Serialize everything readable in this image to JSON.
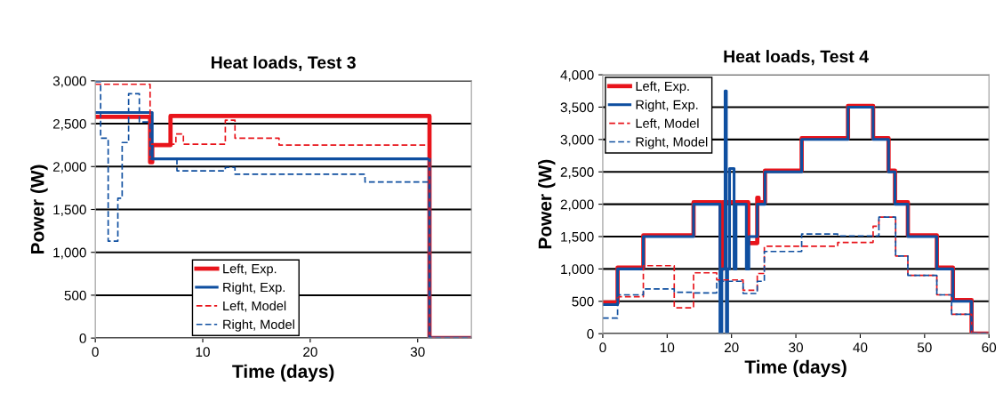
{
  "chart_data": [
    {
      "type": "step",
      "title": "Heat loads, Test 3",
      "xlabel": "Time (days)",
      "ylabel": "Power (W)",
      "xlim": [
        0,
        35
      ],
      "xticks": [
        0,
        10,
        20,
        30
      ],
      "ylim": [
        0,
        3000
      ],
      "yticks": [
        0,
        {
          "value": 500,
          "label": "500"
        },
        {
          "value": 1000,
          "label": "1,000"
        },
        {
          "value": 1500,
          "label": "1,500"
        },
        {
          "value": 2000,
          "label": "2,000"
        },
        {
          "value": 2500,
          "label": "2,500"
        },
        {
          "value": 3000,
          "label": "3,000"
        }
      ],
      "grid": "y",
      "legend": "bottom",
      "series": [
        {
          "name": "Left, Exp.",
          "color": "#e8141b",
          "line_style": "solid",
          "x": [
            0,
            5.1,
            5.3,
            7.0,
            31.1,
            35
          ],
          "values": [
            2580,
            2050,
            2250,
            2590,
            0,
            0
          ]
        },
        {
          "name": "Right, Exp.",
          "color": "#0f4fa0",
          "line_style": "solid",
          "x": [
            0,
            5.3,
            31.1,
            35
          ],
          "values": [
            2630,
            2090,
            0,
            0
          ]
        },
        {
          "name": "Left, Model",
          "color": "#e8141b",
          "line_style": "dashed",
          "x": [
            0,
            5.1,
            7.5,
            8.2,
            12.1,
            13.0,
            17.1,
            31.1,
            35
          ],
          "values": [
            2960,
            2260,
            2380,
            2260,
            2540,
            2330,
            2250,
            0,
            0
          ]
        },
        {
          "name": "Right, Model",
          "color": "#0f4fa0",
          "line_style": "dashed",
          "x": [
            0,
            0.5,
            1.2,
            2.1,
            2.5,
            3.1,
            4.1,
            5.1,
            7.6,
            12.1,
            13.0,
            25.1,
            31.1,
            35
          ],
          "values": [
            2990,
            2330,
            1130,
            1630,
            2280,
            2850,
            2520,
            2090,
            1950,
            1990,
            1910,
            1820,
            0,
            0
          ]
        }
      ]
    },
    {
      "type": "step",
      "title": "Heat loads, Test 4",
      "xlabel": "Time (days)",
      "ylabel": "Power (W)",
      "xlim": [
        0,
        60
      ],
      "xticks": [
        0,
        10,
        20,
        30,
        40,
        50,
        60
      ],
      "ylim": [
        0,
        4000
      ],
      "yticks": [
        0,
        {
          "value": 500,
          "label": "500"
        },
        {
          "value": 1000,
          "label": "1,000"
        },
        {
          "value": 1500,
          "label": "1,500"
        },
        {
          "value": 2000,
          "label": "2,000"
        },
        {
          "value": 2500,
          "label": "2,500"
        },
        {
          "value": 3000,
          "label": "3,000"
        },
        {
          "value": 3500,
          "label": "3,500"
        },
        {
          "value": 4000,
          "label": "4,000"
        }
      ],
      "grid": "y",
      "legend": "top left",
      "series": [
        {
          "name": "Left, Exp.",
          "color": "#e8141b",
          "line_style": "solid",
          "x": [
            0,
            2.3,
            6.3,
            14.1,
            18.3,
            18.6,
            22.6,
            24.0,
            24.2,
            25.2,
            30.9,
            38.1,
            42.0,
            44.4,
            45.4,
            47.4,
            51.9,
            54.4,
            57.3,
            60
          ],
          "values": [
            480,
            1020,
            1520,
            2030,
            1000,
            2030,
            1400,
            2100,
            2030,
            2520,
            3020,
            3520,
            3020,
            2520,
            2030,
            1520,
            1020,
            520,
            0,
            0
          ]
        },
        {
          "name": "Right, Exp.",
          "color": "#0f4fa0",
          "line_style": "solid",
          "x": [
            0,
            2.3,
            6.3,
            14.1,
            18.2,
            18.5,
            19.0,
            19.2,
            19.4,
            19.7,
            20.4,
            20.7,
            22.3,
            22.7,
            24.0,
            25.2,
            30.9,
            38.1,
            42.0,
            44.4,
            45.4,
            47.4,
            51.9,
            54.4,
            57.3,
            60
          ],
          "values": [
            450,
            1000,
            1500,
            2000,
            0,
            1000,
            3750,
            0,
            1000,
            2550,
            1000,
            2000,
            1000,
            1500,
            2000,
            2500,
            3000,
            3500,
            3000,
            2500,
            2000,
            1500,
            1000,
            500,
            0,
            0
          ]
        },
        {
          "name": "Left, Model",
          "color": "#e8141b",
          "line_style": "dashed",
          "x": [
            0,
            2.3,
            6.3,
            11.1,
            14.1,
            17.7,
            21.8,
            24.0,
            25.1,
            36.5,
            42.0,
            42.9,
            45.5,
            47.4,
            51.9,
            54.2,
            57.3,
            60
          ],
          "values": [
            500,
            570,
            1050,
            400,
            940,
            830,
            670,
            930,
            1350,
            1410,
            1660,
            1800,
            1200,
            900,
            600,
            300,
            0,
            0
          ]
        },
        {
          "name": "Right, Model",
          "color": "#0f4fa0",
          "line_style": "dashed",
          "x": [
            0,
            2.3,
            6.3,
            11.1,
            14.1,
            17.7,
            21.8,
            24.0,
            25.1,
            30.9,
            36.5,
            42.9,
            45.5,
            47.4,
            51.9,
            54.2,
            57.3,
            60
          ],
          "values": [
            240,
            600,
            690,
            640,
            630,
            810,
            620,
            810,
            1270,
            1540,
            1510,
            1800,
            1200,
            900,
            600,
            300,
            0,
            0
          ]
        }
      ]
    }
  ]
}
